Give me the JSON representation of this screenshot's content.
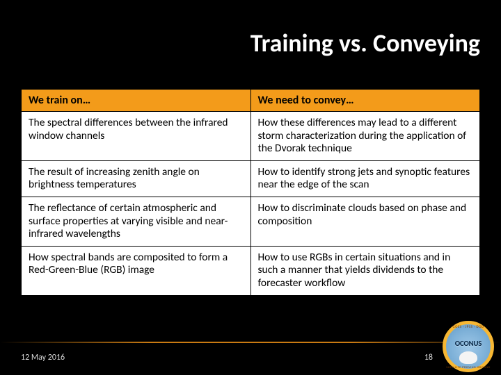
{
  "title": "Training vs. Conveying",
  "table": {
    "header_bg": "#f39b1a",
    "cell_bg": "#ffffff",
    "border_color": "#000000",
    "columns": [
      "We train on…",
      "We need to convey…"
    ],
    "rows": [
      [
        "The spectral differences between the infrared window channels",
        "How these differences may lead to a different storm characterization during the application of the Dvorak technique"
      ],
      [
        "The result of increasing zenith angle on brightness temperatures",
        "How to identify strong jets and synoptic features near the edge of the scan"
      ],
      [
        "The reflectance of certain atmospheric and surface properties at varying visible and near-infrared wavelengths",
        "How to discriminate clouds based on phase and composition"
      ],
      [
        "How spectral bands are composited to form a Red-Green-Blue (RGB) image",
        "How to use RGBs in certain situations and in such a manner that yields dividends to the forecaster workflow"
      ]
    ]
  },
  "footer": {
    "date": "12 May 2016",
    "page": "18"
  },
  "logo": {
    "top_text": "GOES · JPSS · DOD",
    "brand": "OCONUS",
    "bottom_text": "SATELLITE PROVING GROUND"
  }
}
